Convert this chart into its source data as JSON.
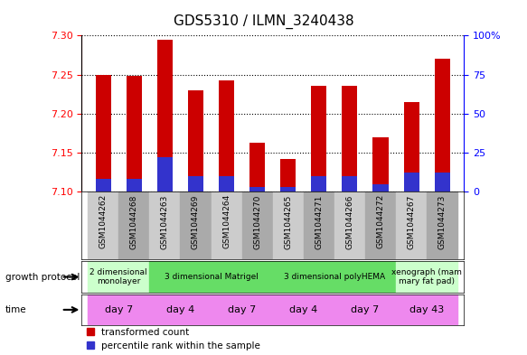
{
  "title": "GDS5310 / ILMN_3240438",
  "samples": [
    "GSM1044262",
    "GSM1044268",
    "GSM1044263",
    "GSM1044269",
    "GSM1044264",
    "GSM1044270",
    "GSM1044265",
    "GSM1044271",
    "GSM1044266",
    "GSM1044272",
    "GSM1044267",
    "GSM1044273"
  ],
  "transformed_count": [
    7.25,
    7.248,
    7.295,
    7.23,
    7.242,
    7.163,
    7.142,
    7.235,
    7.236,
    7.17,
    7.215,
    7.27
  ],
  "percentile_rank": [
    8,
    8,
    22,
    10,
    10,
    3,
    3,
    10,
    10,
    5,
    12,
    12
  ],
  "bar_bottom": 7.1,
  "ylim_left": [
    7.1,
    7.3
  ],
  "ylim_right": [
    0,
    100
  ],
  "yticks_left": [
    7.1,
    7.15,
    7.2,
    7.25,
    7.3
  ],
  "yticks_right": [
    0,
    25,
    50,
    75,
    100
  ],
  "bar_color_red": "#CC0000",
  "bar_color_blue": "#3333CC",
  "gp_groups": [
    {
      "label": "2 dimensional\nmonolayer",
      "start": 0,
      "end": 2,
      "color": "#ccffcc"
    },
    {
      "label": "3 dimensional Matrigel",
      "start": 2,
      "end": 6,
      "color": "#66dd66"
    },
    {
      "label": "3 dimensional polyHEMA",
      "start": 6,
      "end": 10,
      "color": "#66dd66"
    },
    {
      "label": "xenograph (mam\nmary fat pad)",
      "start": 10,
      "end": 12,
      "color": "#ccffcc"
    }
  ],
  "time_groups": [
    {
      "label": "day 7",
      "start": 0,
      "end": 2
    },
    {
      "label": "day 4",
      "start": 2,
      "end": 4
    },
    {
      "label": "day 7",
      "start": 4,
      "end": 6
    },
    {
      "label": "day 4",
      "start": 6,
      "end": 8
    },
    {
      "label": "day 7",
      "start": 8,
      "end": 10
    },
    {
      "label": "day 43",
      "start": 10,
      "end": 12
    }
  ],
  "time_color": "#ee88ee",
  "legend_red_label": "transformed count",
  "legend_blue_label": "percentile rank within the sample",
  "growth_protocol_text": "growth protocol",
  "time_text": "time",
  "bar_width": 0.5,
  "sample_bg_even": "#cccccc",
  "sample_bg_odd": "#aaaaaa",
  "title_fontsize": 11
}
